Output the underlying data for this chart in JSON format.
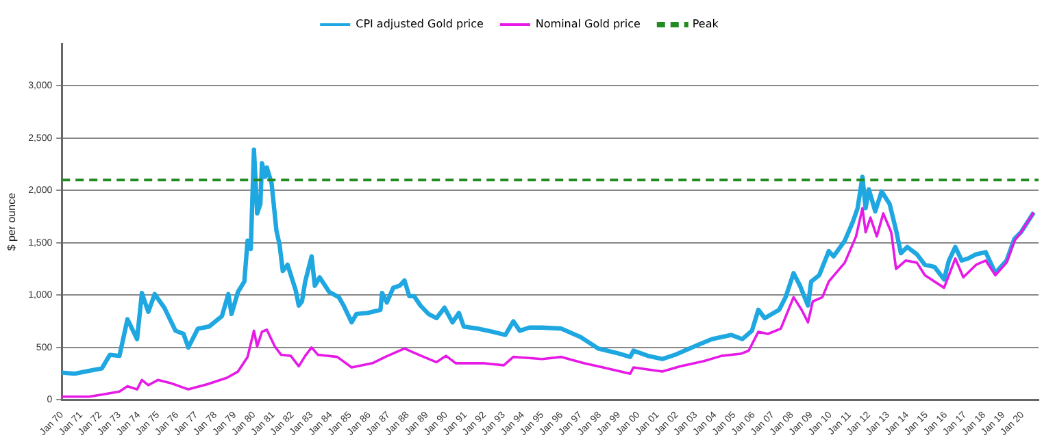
{
  "chart_data": {
    "type": "line",
    "ylabel": "$ per ounce",
    "legend": "top",
    "grid": "y",
    "marker": "none",
    "line_style": "solid",
    "xlim": [
      "1970-01",
      "2020-11"
    ],
    "ylim": [
      0,
      3400
    ],
    "yticks": [
      {
        "value": 0,
        "label": "0"
      },
      {
        "value": 500,
        "label": "500"
      },
      {
        "value": 1000,
        "label": "1,000"
      },
      {
        "value": 1500,
        "label": "1,500"
      },
      {
        "value": 2000,
        "label": "2,000"
      },
      {
        "value": 2500,
        "label": "2,500"
      },
      {
        "value": 3000,
        "label": "3,000"
      }
    ],
    "xticks": [
      {
        "value": "1970-01",
        "label": "Jan 70"
      },
      {
        "value": "1971-01",
        "label": "Jan 71"
      },
      {
        "value": "1972-01",
        "label": "Jan 72"
      },
      {
        "value": "1973-01",
        "label": "Jan 73"
      },
      {
        "value": "1974-01",
        "label": "Jan 74"
      },
      {
        "value": "1975-01",
        "label": "Jan 75"
      },
      {
        "value": "1976-01",
        "label": "Jan 76"
      },
      {
        "value": "1977-01",
        "label": "Jan 77"
      },
      {
        "value": "1978-01",
        "label": "Jan 78"
      },
      {
        "value": "1979-01",
        "label": "Jan 79"
      },
      {
        "value": "1980-01",
        "label": "Jan 80"
      },
      {
        "value": "1981-01",
        "label": "Jan 81"
      },
      {
        "value": "1982-01",
        "label": "Jan 82"
      },
      {
        "value": "1983-01",
        "label": "Jan 83"
      },
      {
        "value": "1984-01",
        "label": "Jan 84"
      },
      {
        "value": "1985-01",
        "label": "Jan 85"
      },
      {
        "value": "1986-01",
        "label": "Jan 86"
      },
      {
        "value": "1987-01",
        "label": "Jan 87"
      },
      {
        "value": "1988-01",
        "label": "Jan 88"
      },
      {
        "value": "1989-01",
        "label": "Jan 89"
      },
      {
        "value": "1990-01",
        "label": "Jan 90"
      },
      {
        "value": "1991-01",
        "label": "Jan 91"
      },
      {
        "value": "1992-01",
        "label": "Jan 92"
      },
      {
        "value": "1993-01",
        "label": "Jan 93"
      },
      {
        "value": "1994-01",
        "label": "Jan 94"
      },
      {
        "value": "1995-01",
        "label": "Jan 95"
      },
      {
        "value": "1996-01",
        "label": "Jan 96"
      },
      {
        "value": "1997-01",
        "label": "Jan 97"
      },
      {
        "value": "1998-01",
        "label": "Jan 98"
      },
      {
        "value": "1999-01",
        "label": "Jan 99"
      },
      {
        "value": "2000-01",
        "label": "Jan 00"
      },
      {
        "value": "2001-01",
        "label": "Jan 01"
      },
      {
        "value": "2002-01",
        "label": "Jan 02"
      },
      {
        "value": "2003-01",
        "label": "Jan 03"
      },
      {
        "value": "2004-01",
        "label": "Jan 04"
      },
      {
        "value": "2005-01",
        "label": "Jan 05"
      },
      {
        "value": "2006-01",
        "label": "Jan 06"
      },
      {
        "value": "2007-01",
        "label": "Jan 07"
      },
      {
        "value": "2008-01",
        "label": "Jan 08"
      },
      {
        "value": "2009-01",
        "label": "Jan 09"
      },
      {
        "value": "2010-01",
        "label": "Jan 10"
      },
      {
        "value": "2011-01",
        "label": "Jan 11"
      },
      {
        "value": "2012-01",
        "label": "Jan 12"
      },
      {
        "value": "2013-01",
        "label": "Jan 13"
      },
      {
        "value": "2014-01",
        "label": "Jan 14"
      },
      {
        "value": "2015-01",
        "label": "Jan 15"
      },
      {
        "value": "2016-01",
        "label": "Jan 16"
      },
      {
        "value": "2017-01",
        "label": "Jan 17"
      },
      {
        "value": "2018-01",
        "label": "Jan 18"
      },
      {
        "value": "2019-01",
        "label": "Jan 19"
      },
      {
        "value": "2020-01",
        "label": "Jan 20"
      }
    ],
    "series": [
      {
        "name": "CPI adjusted Gold price",
        "color": "#1ea7e1",
        "x": [
          "1970-01",
          "1970-09",
          "1972-02",
          "1972-07",
          "1973-01",
          "1973-06",
          "1973-12",
          "1974-03",
          "1974-07",
          "1974-11",
          "1975-05",
          "1975-12",
          "1976-05",
          "1976-08",
          "1977-02",
          "1977-09",
          "1978-05",
          "1978-09",
          "1978-11",
          "1979-03",
          "1979-07",
          "1979-09",
          "1979-11",
          "1980-01",
          "1980-03",
          "1980-05",
          "1980-06",
          "1980-08",
          "1980-09",
          "1980-12",
          "1981-03",
          "1981-05",
          "1981-07",
          "1981-10",
          "1982-03",
          "1982-05",
          "1982-07",
          "1982-09",
          "1983-01",
          "1983-03",
          "1983-06",
          "1983-12",
          "1984-06",
          "1984-09",
          "1985-02",
          "1985-05",
          "1985-12",
          "1986-08",
          "1986-09",
          "1986-12",
          "1987-04",
          "1987-08",
          "1987-11",
          "1988-02",
          "1988-05",
          "1988-09",
          "1989-02",
          "1989-07",
          "1989-12",
          "1990-05",
          "1990-09",
          "1990-12",
          "1991-09",
          "1992-06",
          "1993-02",
          "1993-07",
          "1993-11",
          "1994-05",
          "1995-01",
          "1996-01",
          "1997-01",
          "1997-12",
          "1998-11",
          "1999-08",
          "1999-10",
          "2000-07",
          "2001-04",
          "2001-12",
          "2002-12",
          "2003-11",
          "2004-11",
          "2005-06",
          "2005-12",
          "2006-04",
          "2006-08",
          "2007-05",
          "2007-09",
          "2008-02",
          "2008-06",
          "2008-11",
          "2009-01",
          "2009-06",
          "2009-12",
          "2010-03",
          "2010-10",
          "2011-03",
          "2011-06",
          "2011-09",
          "2011-11",
          "2012-01",
          "2012-05",
          "2012-09",
          "2013-02",
          "2013-06",
          "2013-09",
          "2014-01",
          "2014-07",
          "2014-12",
          "2015-06",
          "2015-12",
          "2016-03",
          "2016-07",
          "2016-11",
          "2017-03",
          "2017-08",
          "2018-02",
          "2018-08",
          "2019-03",
          "2019-08",
          "2019-12",
          "2020-08"
        ],
        "values": [
          260,
          250,
          300,
          430,
          420,
          770,
          580,
          1020,
          840,
          1010,
          880,
          660,
          630,
          500,
          680,
          700,
          800,
          1010,
          820,
          1030,
          1130,
          1520,
          1440,
          2390,
          1780,
          1870,
          2260,
          2130,
          2220,
          2070,
          1620,
          1480,
          1230,
          1290,
          1050,
          900,
          940,
          1130,
          1370,
          1090,
          1170,
          1030,
          980,
          900,
          740,
          820,
          830,
          860,
          1020,
          930,
          1070,
          1090,
          1140,
          990,
          990,
          900,
          820,
          780,
          880,
          740,
          830,
          700,
          680,
          650,
          620,
          750,
          660,
          690,
          690,
          680,
          600,
          490,
          450,
          410,
          470,
          420,
          390,
          430,
          510,
          580,
          620,
          580,
          660,
          860,
          780,
          860,
          980,
          1210,
          1090,
          900,
          1130,
          1190,
          1420,
          1370,
          1520,
          1700,
          1830,
          2130,
          1830,
          2010,
          1800,
          1990,
          1870,
          1620,
          1400,
          1460,
          1390,
          1290,
          1270,
          1150,
          1330,
          1460,
          1330,
          1350,
          1390,
          1410,
          1210,
          1330,
          1540,
          1600,
          1790
        ]
      },
      {
        "name": "Nominal Gold price",
        "color": "#e619e6",
        "x": [
          "1970-01",
          "1971-06",
          "1972-02",
          "1973-01",
          "1973-06",
          "1973-12",
          "1974-03",
          "1974-07",
          "1975-01",
          "1975-09",
          "1976-08",
          "1977-08",
          "1978-08",
          "1979-03",
          "1979-09",
          "1980-01",
          "1980-03",
          "1980-06",
          "1980-09",
          "1981-02",
          "1981-06",
          "1981-12",
          "1982-05",
          "1982-09",
          "1983-01",
          "1983-05",
          "1984-05",
          "1985-02",
          "1986-03",
          "1986-11",
          "1987-11",
          "1988-08",
          "1989-07",
          "1990-01",
          "1990-07",
          "1991-12",
          "1993-01",
          "1993-07",
          "1995-01",
          "1996-01",
          "1997-03",
          "1998-03",
          "1999-08",
          "1999-10",
          "2001-04",
          "2002-03",
          "2003-06",
          "2004-05",
          "2005-05",
          "2005-10",
          "2006-04",
          "2006-10",
          "2007-06",
          "2008-02",
          "2008-07",
          "2008-11",
          "2009-02",
          "2009-08",
          "2009-12",
          "2010-10",
          "2011-05",
          "2011-09",
          "2011-11",
          "2012-02",
          "2012-06",
          "2012-10",
          "2013-03",
          "2013-06",
          "2013-12",
          "2014-07",
          "2014-12",
          "2015-12",
          "2016-07",
          "2016-12",
          "2017-08",
          "2018-02",
          "2018-08",
          "2019-03",
          "2019-08",
          "2019-12",
          "2020-08"
        ],
        "values": [
          30,
          30,
          50,
          80,
          130,
          100,
          190,
          140,
          190,
          160,
          100,
          150,
          210,
          270,
          410,
          660,
          510,
          650,
          670,
          510,
          430,
          420,
          320,
          420,
          500,
          430,
          410,
          310,
          350,
          410,
          490,
          430,
          360,
          420,
          350,
          350,
          330,
          410,
          390,
          410,
          350,
          310,
          250,
          310,
          270,
          320,
          370,
          420,
          440,
          470,
          650,
          630,
          680,
          980,
          860,
          740,
          940,
          980,
          1130,
          1310,
          1560,
          1830,
          1600,
          1740,
          1560,
          1780,
          1600,
          1250,
          1330,
          1310,
          1190,
          1070,
          1350,
          1170,
          1290,
          1330,
          1190,
          1310,
          1520,
          1600,
          1790
        ]
      }
    ],
    "ref_lines": [
      {
        "axis": "y",
        "value": 2100,
        "label": "Peak",
        "color": "#228b22",
        "line_style": "dashed"
      }
    ]
  }
}
